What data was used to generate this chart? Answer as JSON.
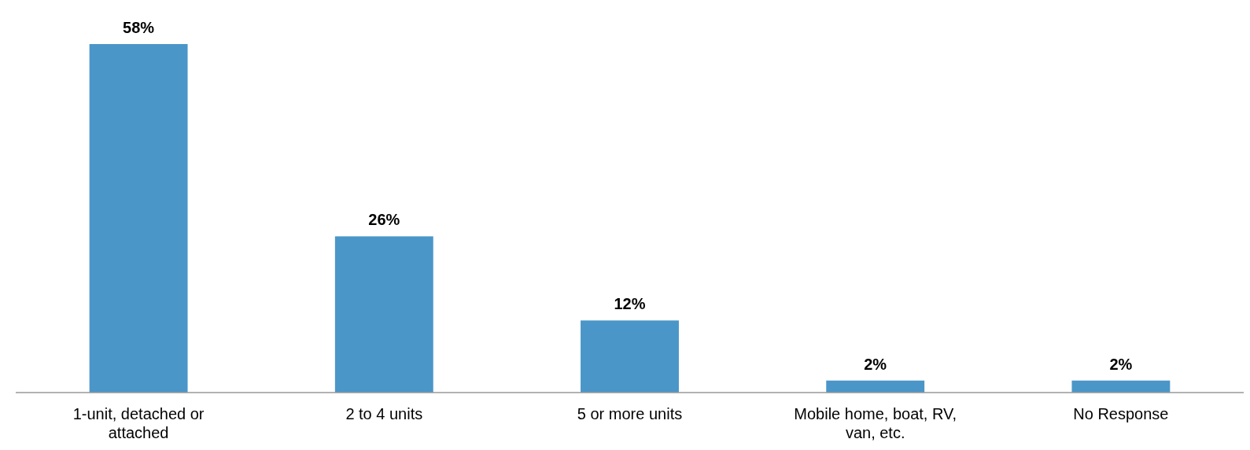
{
  "chart_data": {
    "type": "bar",
    "categories": [
      "1-unit, detached or attached",
      "2 to 4 units",
      "5 or more units",
      "Mobile home, boat, RV, van, etc.",
      "No Response"
    ],
    "values": [
      58,
      26,
      12,
      2,
      2
    ],
    "color": "#4a96c8",
    "value_labels": [
      "58%",
      "26%",
      "12%",
      "2%",
      "2%"
    ]
  }
}
